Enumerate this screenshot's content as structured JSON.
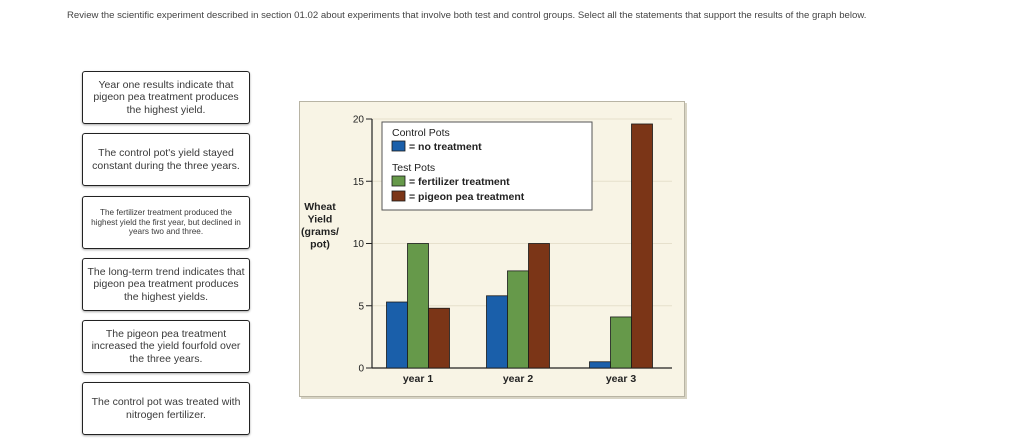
{
  "instructions": "Review the scientific experiment described in section 01.02 about experiments that involve both test and control groups. Select all the statements that support the results of the graph below.",
  "choices": [
    {
      "text": "Year one results indicate that pigeon pea treatment produces the highest yield."
    },
    {
      "text": "The control pot's yield stayed constant during the three years."
    },
    {
      "text": "The fertilizer treatment produced the highest yield the first year, but declined in years two and three."
    },
    {
      "text": "The long-term trend indicates that pigeon pea treatment produces the highest yields."
    },
    {
      "text": "The pigeon pea treatment increased the yield fourfold over the three years."
    },
    {
      "text": "The control pot was treated with nitrogen fertilizer."
    }
  ],
  "chart_data": {
    "type": "bar",
    "categories": [
      "year 1",
      "year 2",
      "year 3"
    ],
    "series": [
      {
        "name": "no treatment",
        "values": [
          5.3,
          5.8,
          0.5
        ],
        "color": "#1a5faa"
      },
      {
        "name": "fertilizer treatment",
        "values": [
          10.0,
          7.8,
          4.1
        ],
        "color": "#66994a"
      },
      {
        "name": "pigeon pea treatment",
        "values": [
          4.8,
          10.0,
          19.6
        ],
        "color": "#7b3517"
      }
    ],
    "ylabel": "Wheat\nYield\n(grams/\npot)",
    "ylim": [
      0,
      20
    ],
    "yticks": [
      0,
      5,
      10,
      15,
      20
    ],
    "legend": {
      "control_heading": "Control Pots",
      "test_heading": "Test Pots",
      "items": [
        "= no treatment",
        "= fertilizer treatment",
        "= pigeon pea treatment"
      ],
      "placement": "top-left"
    },
    "grid": true
  }
}
